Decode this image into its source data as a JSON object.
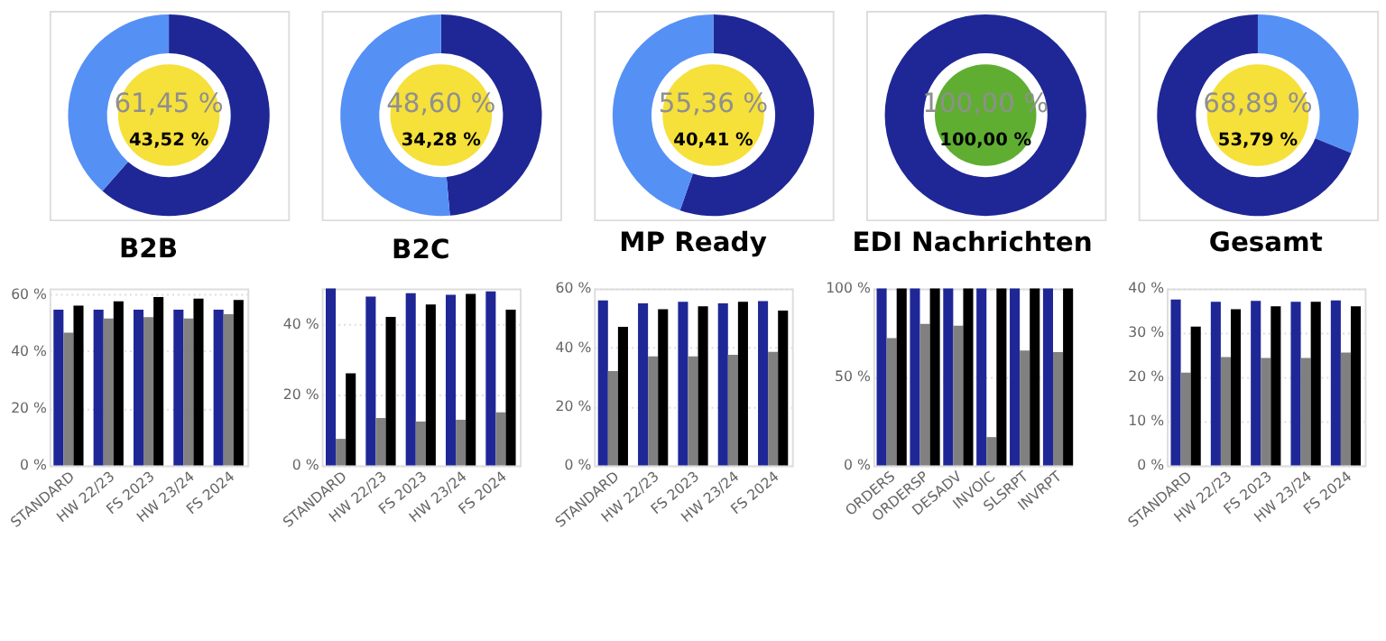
{
  "chart_data": [
    {
      "type": "donut",
      "categories": [
        null,
        null
      ],
      "values": [
        61.45,
        38.55
      ],
      "colors": [
        "#1f2796",
        "#5590f5"
      ],
      "annotations": [
        "61,45 %",
        "43,52 %"
      ]
    },
    {
      "type": "donut",
      "categories": [
        null,
        null
      ],
      "values": [
        48.6,
        51.4
      ],
      "colors": [
        "#1f2796",
        "#5590f5"
      ],
      "annotations": [
        "48,60 %",
        "34,28 %"
      ]
    },
    {
      "type": "donut",
      "categories": [
        null,
        null
      ],
      "values": [
        55.36,
        44.64
      ],
      "colors": [
        "#1f2796",
        "#5590f5"
      ],
      "annotations": [
        "55,36 %",
        "40,41 %"
      ]
    },
    {
      "type": "donut",
      "categories": [
        null
      ],
      "values": [
        100
      ],
      "colors": [
        "#1f2796"
      ],
      "annotations": [
        "100,00 %",
        "100,00 %"
      ]
    },
    {
      "type": "donut",
      "categories": [
        null,
        null
      ],
      "values": [
        31.11,
        68.89
      ],
      "colors": [
        "#5590f5",
        "#1f2796"
      ],
      "annotations": [
        "68,89 %",
        "53,79 %"
      ]
    },
    {
      "type": "bar",
      "title": "B2B",
      "categories": [
        "STANDARD",
        "HW 22/23",
        "FS 2023",
        "HW 23/24",
        "FS 2024"
      ],
      "ylim": [
        0,
        62
      ],
      "yticks": [
        {
          "value": 0,
          "label": "0 %"
        },
        {
          "value": 20,
          "label": "20 %"
        },
        {
          "value": 40,
          "label": "40 %"
        },
        {
          "value": 60,
          "label": "60 %"
        }
      ],
      "grid": "y",
      "series": [
        {
          "color": "#1f2796",
          "values": [
            54.6,
            54.6,
            54.6,
            54.6,
            54.6
          ]
        },
        {
          "color": "#808080",
          "values": [
            46.5,
            51.5,
            52,
            51.5,
            53
          ]
        },
        {
          "color": "#000000",
          "values": [
            56,
            57.5,
            59,
            58.5,
            58
          ]
        }
      ]
    },
    {
      "type": "bar",
      "title": "B2C",
      "categories": [
        "STANDARD",
        "HW 22/23",
        "FS 2023",
        "HW 23/24",
        "FS 2024"
      ],
      "ylim": [
        0,
        50
      ],
      "yticks": [
        {
          "value": 0,
          "label": "0 %"
        },
        {
          "value": 20,
          "label": "20 %"
        },
        {
          "value": 40,
          "label": "40 %"
        }
      ],
      "grid": "y",
      "series": [
        {
          "color": "#1f2796",
          "values": [
            50,
            47.7,
            48.7,
            48.2,
            49.2
          ]
        },
        {
          "color": "#808080",
          "values": [
            7.5,
            13.4,
            12.4,
            12.9,
            15
          ]
        },
        {
          "color": "#000000",
          "values": [
            26,
            42,
            45.5,
            48.5,
            44
          ]
        }
      ]
    },
    {
      "type": "bar",
      "title": "MP Ready",
      "categories": [
        "STANDARD",
        "HW 22/23",
        "FS 2023",
        "HW 23/24",
        "FS 2024"
      ],
      "ylim": [
        0,
        60
      ],
      "yticks": [
        {
          "value": 0,
          "label": "0 %"
        },
        {
          "value": 20,
          "label": "20 %"
        },
        {
          "value": 40,
          "label": "40 %"
        },
        {
          "value": 60,
          "label": "60 %"
        }
      ],
      "grid": "y",
      "series": [
        {
          "color": "#1f2796",
          "values": [
            56,
            55,
            55.5,
            55,
            55.7
          ]
        },
        {
          "color": "#808080",
          "values": [
            32,
            37,
            37,
            37.5,
            38.5
          ]
        },
        {
          "color": "#000000",
          "values": [
            47,
            53,
            54,
            55.5,
            52.5
          ]
        }
      ]
    },
    {
      "type": "bar",
      "title": "EDI Nachrichten",
      "categories": [
        "ORDERS",
        "ORDERSP",
        "DESADV",
        "INVOIC",
        "SLSRPT",
        "INVRPT"
      ],
      "ylim": [
        0,
        100
      ],
      "yticks": [
        {
          "value": 0,
          "label": "0 %"
        },
        {
          "value": 50,
          "label": "50 %"
        },
        {
          "value": 100,
          "label": "100 %"
        }
      ],
      "grid": "y",
      "series": [
        {
          "color": "#1f2796",
          "values": [
            100,
            100,
            100,
            100,
            100,
            100
          ]
        },
        {
          "color": "#808080",
          "values": [
            72,
            80,
            79,
            16,
            65,
            64
          ]
        },
        {
          "color": "#000000",
          "values": [
            100,
            100,
            100,
            100,
            100,
            100
          ]
        }
      ]
    },
    {
      "type": "bar",
      "title": "Gesamt",
      "categories": [
        "STANDARD",
        "HW 22/23",
        "FS 2023",
        "HW 23/24",
        "FS 2024"
      ],
      "ylim": [
        0,
        40
      ],
      "yticks": [
        {
          "value": 0,
          "label": "0 %"
        },
        {
          "value": 10,
          "label": "10 %"
        },
        {
          "value": 20,
          "label": "20 %"
        },
        {
          "value": 30,
          "label": "30 %"
        },
        {
          "value": 40,
          "label": "40 %"
        }
      ],
      "grid": "y",
      "series": [
        {
          "color": "#1f2796",
          "values": [
            37.5,
            37,
            37.2,
            37,
            37.3
          ]
        },
        {
          "color": "#808080",
          "values": [
            21,
            24.5,
            24.3,
            24.3,
            25.5
          ]
        },
        {
          "color": "#000000",
          "values": [
            31.4,
            35.3,
            36,
            37,
            36
          ]
        }
      ]
    }
  ]
}
